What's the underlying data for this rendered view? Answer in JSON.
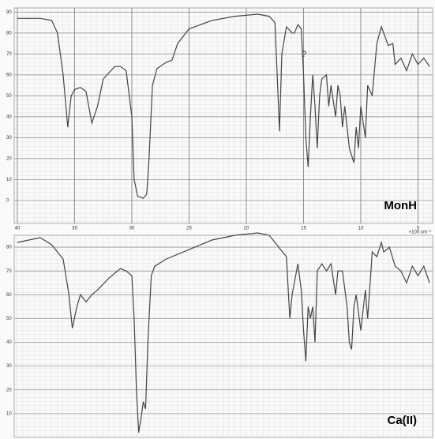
{
  "chart_data": [
    {
      "type": "line",
      "label": "MonH",
      "annotation": "?",
      "color": "#444444",
      "xlim": [
        40,
        4
      ],
      "ylim": [
        -11,
        92
      ],
      "xticks": [
        40,
        35,
        30,
        25,
        20,
        15,
        10,
        5
      ],
      "yticks": [
        0,
        10,
        20,
        30,
        40,
        50,
        60,
        70,
        80,
        90
      ],
      "x": [
        40,
        38,
        37,
        36.5,
        36,
        35.6,
        35.3,
        35,
        34.5,
        34,
        33.5,
        33,
        32.5,
        31.5,
        31,
        30.5,
        30,
        29.8,
        29.5,
        29,
        28.7,
        28.5,
        28.2,
        27.8,
        27,
        26.5,
        26,
        25,
        23,
        21,
        19,
        18,
        17.5,
        17.3,
        17.1,
        16.9,
        16.5,
        16,
        15.8,
        15.5,
        15.2,
        15,
        14.8,
        14.6,
        14.4,
        14.2,
        14,
        13.8,
        13.6,
        13.4,
        13,
        12.8,
        12.6,
        12.2,
        12,
        11.8,
        11.6,
        11.4,
        11,
        10.6,
        10.4,
        10.2,
        10,
        9.6,
        9.4,
        9,
        8.6,
        8.2,
        8,
        7.6,
        7.2,
        7,
        6.5,
        6,
        5.5,
        5,
        4.5,
        4
      ],
      "values": [
        87,
        87,
        86,
        80,
        60,
        35,
        50,
        53,
        54,
        52,
        37,
        45,
        58,
        64,
        64,
        62,
        40,
        10,
        2,
        1,
        3,
        20,
        55,
        63,
        66,
        67,
        75,
        82,
        86,
        88,
        89,
        88,
        85,
        60,
        33,
        70,
        83,
        80,
        80,
        84,
        82,
        60,
        30,
        16,
        40,
        60,
        45,
        25,
        50,
        58,
        60,
        45,
        55,
        40,
        55,
        50,
        35,
        45,
        25,
        18,
        35,
        25,
        45,
        30,
        55,
        50,
        75,
        83,
        80,
        74,
        75,
        65,
        68,
        62,
        70,
        65,
        68,
        64
      ]
    },
    {
      "type": "line",
      "label": "Ca(II)",
      "x_unit_label": "×100 cm⁻¹",
      "color": "#444444",
      "xlim": [
        40,
        4
      ],
      "ylim": [
        0,
        85
      ],
      "yticks": [
        10,
        20,
        30,
        40,
        50,
        60,
        70,
        80
      ],
      "x": [
        40,
        38,
        37,
        36,
        35.5,
        35.2,
        34.8,
        34.5,
        34,
        33.5,
        33,
        32,
        31,
        30.5,
        30,
        29.8,
        29.6,
        29.4,
        29.2,
        29,
        28.8,
        28.6,
        28.3,
        28,
        27,
        25,
        23,
        21,
        19,
        18,
        17.5,
        17,
        16.5,
        16.2,
        16,
        15.5,
        15.2,
        15,
        14.8,
        14.6,
        14.4,
        14.2,
        14,
        13.8,
        13.4,
        13,
        12.6,
        12.2,
        12,
        11.6,
        11.2,
        11,
        10.8,
        10.6,
        10.4,
        10,
        9.6,
        9.4,
        9,
        8.6,
        8.2,
        8,
        7.5,
        7,
        6.5,
        6,
        5.5,
        5,
        4.5,
        4
      ],
      "values": [
        82,
        84,
        81,
        75,
        60,
        46,
        55,
        60,
        57,
        60,
        62,
        67,
        71,
        70,
        68,
        50,
        20,
        2,
        8,
        15,
        12,
        40,
        68,
        72,
        75,
        79,
        83,
        85,
        86,
        85,
        82,
        79,
        76,
        50,
        60,
        73,
        62,
        45,
        32,
        55,
        50,
        55,
        40,
        70,
        73,
        70,
        73,
        60,
        70,
        70,
        55,
        40,
        37,
        55,
        60,
        45,
        62,
        50,
        78,
        76,
        82,
        78,
        80,
        72,
        70,
        65,
        72,
        68,
        72,
        65
      ]
    }
  ]
}
